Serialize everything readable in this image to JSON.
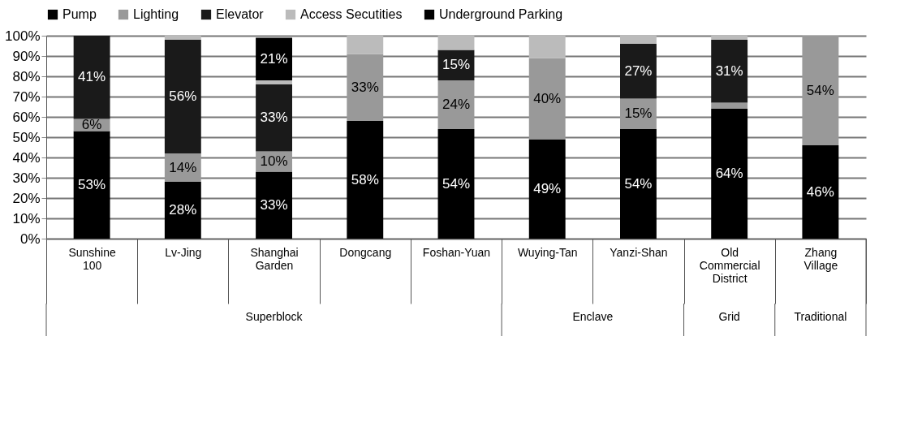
{
  "chart_data": {
    "type": "bar",
    "stacked": true,
    "legend": "top",
    "grid": "y",
    "categories": [
      "Sunshine 100",
      "Lv-Jing",
      "Shanghai Garden",
      "Dongcang",
      "Foshan-Yuan",
      "Wuying-Tan",
      "Yanzi-Shan",
      "Old Commercial District",
      "Zhang Village"
    ],
    "ylim": [
      0,
      100
    ],
    "yticks": [
      {
        "value": 0,
        "label": "0%"
      },
      {
        "value": 10,
        "label": "10%"
      },
      {
        "value": 20,
        "label": "20%"
      },
      {
        "value": 30,
        "label": "30%"
      },
      {
        "value": 40,
        "label": "40%"
      },
      {
        "value": 50,
        "label": "50%"
      },
      {
        "value": 60,
        "label": "60%"
      },
      {
        "value": 70,
        "label": "70%"
      },
      {
        "value": 80,
        "label": "80%"
      },
      {
        "value": 90,
        "label": "90%"
      },
      {
        "value": 100,
        "label": "100%"
      }
    ],
    "series": [
      {
        "name": "Pump",
        "color": "#000000",
        "values": [
          53,
          28,
          33,
          58,
          54,
          49,
          54,
          64,
          46
        ],
        "value_labels": [
          "53%",
          "28%",
          "33%",
          "58%",
          "54%",
          "49%",
          "54%",
          "64%",
          "46%"
        ]
      },
      {
        "name": "Lighting",
        "color": "#999999",
        "values": [
          6,
          14,
          10,
          33,
          24,
          40,
          15,
          3,
          54
        ],
        "value_labels": [
          "6%",
          "14%",
          "10%",
          "33%",
          "24%",
          "40%",
          "15%",
          null,
          "54%"
        ]
      },
      {
        "name": "Elevator",
        "color": "#1a1a1a",
        "values": [
          41,
          56,
          33,
          0,
          15,
          0,
          27,
          31,
          0
        ],
        "value_labels": [
          "41%",
          "56%",
          "33%",
          null,
          "15%",
          null,
          "27%",
          "31%",
          null
        ]
      },
      {
        "name": "Access Secutities",
        "color": "#bbbbbb",
        "values": [
          0,
          2,
          2,
          9,
          7,
          11,
          4,
          2,
          0
        ],
        "value_labels": [
          null,
          null,
          null,
          null,
          null,
          null,
          null,
          null,
          null
        ]
      },
      {
        "name": "Underground Parking",
        "color": "#000000",
        "values": [
          0,
          0,
          21,
          0,
          0,
          0,
          0,
          0,
          0
        ],
        "value_labels": [
          null,
          null,
          "21%",
          null,
          null,
          null,
          null,
          null,
          null
        ]
      }
    ],
    "annotations": [
      "Superblock",
      "Enclave",
      "Grid",
      "Traditional"
    ]
  }
}
